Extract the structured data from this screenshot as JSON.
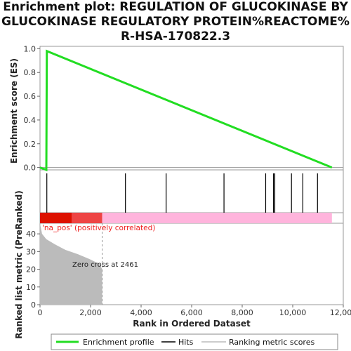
{
  "title_lines": [
    "Enrichment plot: REGULATION OF GLUCOKINASE BY",
    "GLUCOKINASE REGULATORY PROTEIN%REACTOME%",
    "R-HSA-170822.3"
  ],
  "colors": {
    "es_line": "#22dd22",
    "hits": "#000000",
    "pos_dark": "#dd1100",
    "pos_mid": "#ee4444",
    "neg": "#ffb4dc",
    "metric_fill": "#bbbbbb",
    "pos_label": "#ee2222"
  },
  "chart_data": {
    "type": "line",
    "es_panel": {
      "ylabel": "Enrichment score (ES)",
      "yticks": [
        "0.0",
        "0.2",
        "0.4",
        "0.6",
        "0.8",
        "1.0"
      ],
      "ylim": [
        -0.02,
        1.02
      ],
      "points": [
        [
          0,
          0.0
        ],
        [
          250,
          -0.02
        ],
        [
          270,
          0.98
        ],
        [
          11550,
          0.0
        ]
      ]
    },
    "hits": [
      270,
      3380,
      4990,
      7280,
      8930,
      9240,
      9290,
      9950,
      10400,
      10980
    ],
    "ranked_list": {
      "pos_label": "'na_pos' (positively correlated)",
      "zero_cross_label": "Zero cross at 2461",
      "zero_cross": 2461,
      "ylabel": "Ranked list metric (PreRanked)",
      "yticks": [
        "0",
        "10",
        "20",
        "30",
        "40"
      ],
      "ylim": [
        0,
        46
      ],
      "metric_curve": [
        [
          0,
          46
        ],
        [
          80,
          40
        ],
        [
          250,
          37
        ],
        [
          600,
          34
        ],
        [
          1000,
          31
        ],
        [
          1500,
          28.5
        ],
        [
          2000,
          25.5
        ],
        [
          2350,
          23
        ],
        [
          2461,
          20
        ],
        [
          2461,
          0
        ]
      ]
    },
    "xlabel": "Rank in Ordered Dataset",
    "xticks": [
      "0",
      "2,000",
      "4,000",
      "6,000",
      "8,000",
      "10,000",
      "12,000"
    ],
    "xlim": [
      0,
      12000
    ]
  },
  "legend": {
    "items": [
      {
        "label": "Enrichment profile"
      },
      {
        "label": "Hits"
      },
      {
        "label": "Ranking metric scores"
      }
    ]
  }
}
